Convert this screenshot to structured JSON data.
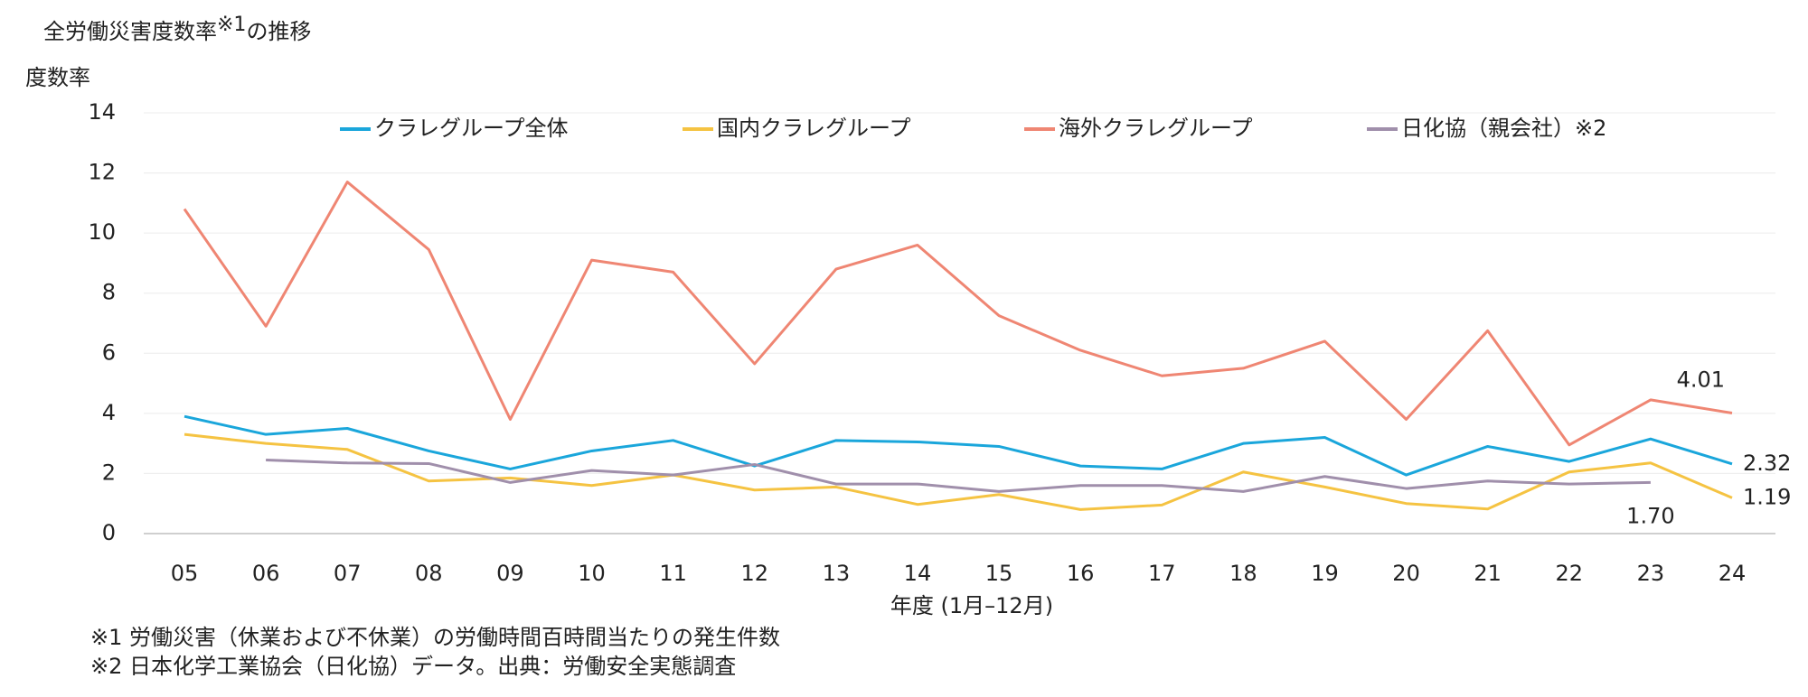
{
  "chart_data": {
    "type": "line",
    "title": [
      "全労働災害度数率",
      "※1",
      "の推移"
    ],
    "y_label": "度数率",
    "x_label": "年度 (1月–12月)",
    "footnotes": [
      "※1 労働災害（休業および不休業）の労働時間百時間当たりの発生件数",
      "※2 日本化学工業協会（日化協）データ。出典：労働安全実態調査"
    ],
    "categories": [
      "05",
      "06",
      "07",
      "08",
      "09",
      "10",
      "11",
      "12",
      "13",
      "14",
      "15",
      "16",
      "17",
      "18",
      "19",
      "20",
      "21",
      "22",
      "23",
      "24"
    ],
    "ylim": [
      0,
      14
    ],
    "yticks": [
      0,
      2,
      4,
      6,
      8,
      10,
      12,
      14
    ],
    "grid": true,
    "series": [
      {
        "name": "クラレグループ全体",
        "color": "#1aa6db",
        "values": [
          3.9,
          3.3,
          3.5,
          2.75,
          2.15,
          2.75,
          3.1,
          2.25,
          3.1,
          3.05,
          2.9,
          2.25,
          2.15,
          3.0,
          3.2,
          1.95,
          2.9,
          2.4,
          3.15,
          2.32
        ],
        "value_labels": [
          null,
          null,
          null,
          null,
          null,
          null,
          null,
          null,
          null,
          null,
          null,
          null,
          null,
          null,
          null,
          null,
          null,
          null,
          null,
          "2.32"
        ]
      },
      {
        "name": "国内クラレグループ",
        "color": "#f5c342",
        "values": [
          3.3,
          3.0,
          2.8,
          1.75,
          1.85,
          1.6,
          1.95,
          1.45,
          1.55,
          0.97,
          1.3,
          0.8,
          0.95,
          2.05,
          1.55,
          1.0,
          0.82,
          2.05,
          2.35,
          1.19
        ],
        "value_labels": [
          null,
          null,
          null,
          null,
          null,
          null,
          null,
          null,
          null,
          null,
          null,
          null,
          null,
          null,
          null,
          null,
          null,
          null,
          null,
          "1.19"
        ]
      },
      {
        "name": "海外クラレグループ",
        "color": "#ef8673",
        "values": [
          10.8,
          6.9,
          11.7,
          9.45,
          3.8,
          9.1,
          8.7,
          5.65,
          8.8,
          9.6,
          7.25,
          6.1,
          5.25,
          5.5,
          6.4,
          3.8,
          6.75,
          2.95,
          4.45,
          4.01
        ],
        "value_labels": [
          null,
          null,
          null,
          null,
          null,
          null,
          null,
          null,
          null,
          null,
          null,
          null,
          null,
          null,
          null,
          null,
          null,
          null,
          null,
          "4.01"
        ]
      },
      {
        "name": "日化協（親会社）※2",
        "color": "#a08fab",
        "values": [
          null,
          2.45,
          2.35,
          2.33,
          1.7,
          2.1,
          1.95,
          2.3,
          1.65,
          1.65,
          1.4,
          1.6,
          1.6,
          1.4,
          1.9,
          1.5,
          1.75,
          1.65,
          1.7,
          null
        ],
        "value_labels": [
          null,
          null,
          null,
          null,
          null,
          null,
          null,
          null,
          null,
          null,
          null,
          null,
          null,
          null,
          null,
          null,
          null,
          null,
          "1.70",
          null
        ]
      }
    ]
  }
}
